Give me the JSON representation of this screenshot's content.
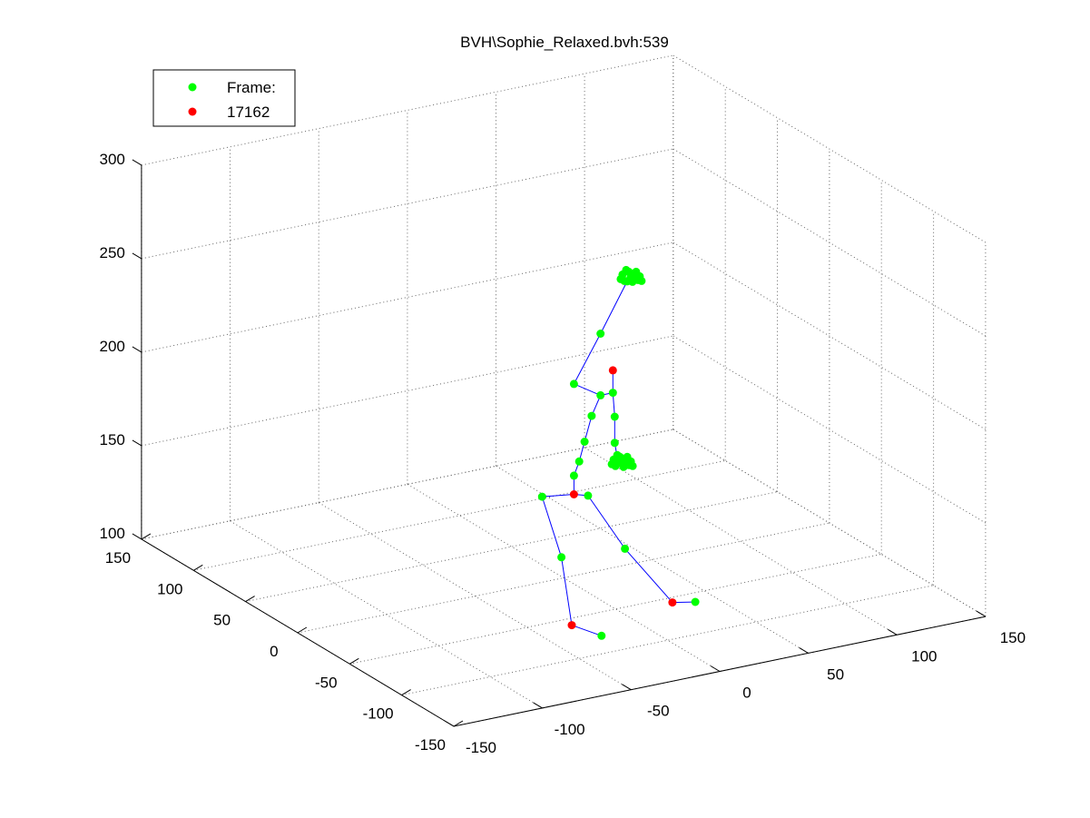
{
  "chart_data": {
    "type": "scatter",
    "title": "BVH\\Sophie_Relaxed.bvh:539",
    "legend": {
      "placement": "top-left",
      "entries": [
        {
          "label": "Frame:",
          "color": "#00ff00"
        },
        {
          "label": "17162",
          "color": "#ff0000"
        }
      ]
    },
    "grid": true,
    "projection": "3d",
    "x_axis": {
      "range": [
        -150,
        150
      ],
      "ticks": [
        "-150",
        "-100",
        "-50",
        "0",
        "50",
        "100",
        "150"
      ]
    },
    "y_axis": {
      "range": [
        -150,
        150
      ],
      "ticks": [
        "-150",
        "-100",
        "-50",
        "0",
        "50",
        "100",
        "150"
      ]
    },
    "z_axis": {
      "range": [
        100,
        300
      ],
      "ticks": [
        "100",
        "150",
        "200",
        "250",
        "300"
      ]
    },
    "colors": {
      "joint": "#00ff00",
      "highlight": "#ff0000",
      "bone": "#0000ff",
      "grid": "#666666"
    },
    "joints": [
      {
        "name": "hip",
        "x": 0,
        "y": -10,
        "z": 148,
        "highlight": true
      },
      {
        "name": "lhip",
        "x": -15,
        "y": -5,
        "z": 148,
        "highlight": false
      },
      {
        "name": "lknee",
        "x": -10,
        "y": -15,
        "z": 118,
        "highlight": false
      },
      {
        "name": "lankle",
        "x": -10,
        "y": -25,
        "z": 85,
        "highlight": true
      },
      {
        "name": "ltoe",
        "x": -5,
        "y": -45,
        "z": 85,
        "highlight": false
      },
      {
        "name": "rhip",
        "x": 5,
        "y": -15,
        "z": 148,
        "highlight": false
      },
      {
        "name": "rknee",
        "x": 20,
        "y": -25,
        "z": 120,
        "highlight": false
      },
      {
        "name": "rankle",
        "x": 35,
        "y": -45,
        "z": 95,
        "highlight": true
      },
      {
        "name": "rtoe",
        "x": 45,
        "y": -50,
        "z": 95,
        "highlight": false
      },
      {
        "name": "spine1",
        "x": 0,
        "y": -10,
        "z": 158,
        "highlight": false
      },
      {
        "name": "spine2",
        "x": 3,
        "y": -10,
        "z": 165,
        "highlight": false
      },
      {
        "name": "spine3",
        "x": 6,
        "y": -10,
        "z": 175,
        "highlight": false
      },
      {
        "name": "spine4",
        "x": 10,
        "y": -10,
        "z": 188,
        "highlight": false
      },
      {
        "name": "neck",
        "x": 15,
        "y": -10,
        "z": 198,
        "highlight": false
      },
      {
        "name": "lshoulder",
        "x": 0,
        "y": -10,
        "z": 207,
        "highlight": false
      },
      {
        "name": "lelbow",
        "x": 15,
        "y": -10,
        "z": 231,
        "highlight": false
      },
      {
        "name": "lwrist",
        "x": 30,
        "y": -10,
        "z": 256,
        "highlight": false
      },
      {
        "name": "rshoulder",
        "x": 22,
        "y": -10,
        "z": 198,
        "highlight": false
      },
      {
        "name": "rupper",
        "x": 22,
        "y": -10,
        "z": 210,
        "highlight": true
      },
      {
        "name": "relbow",
        "x": 23,
        "y": -10,
        "z": 185,
        "highlight": false
      },
      {
        "name": "rforearm",
        "x": 23,
        "y": -10,
        "z": 171,
        "highlight": false
      },
      {
        "name": "rwrist",
        "x": 25,
        "y": -10,
        "z": 160,
        "highlight": false
      }
    ],
    "bones": [
      [
        "hip",
        "lhip"
      ],
      [
        "lhip",
        "lknee"
      ],
      [
        "lknee",
        "lankle"
      ],
      [
        "lankle",
        "ltoe"
      ],
      [
        "hip",
        "rhip"
      ],
      [
        "rhip",
        "rknee"
      ],
      [
        "rknee",
        "rankle"
      ],
      [
        "rankle",
        "rtoe"
      ],
      [
        "hip",
        "spine1"
      ],
      [
        "spine1",
        "spine2"
      ],
      [
        "spine2",
        "spine3"
      ],
      [
        "spine3",
        "spine4"
      ],
      [
        "spine4",
        "neck"
      ],
      [
        "neck",
        "lshoulder"
      ],
      [
        "lshoulder",
        "lelbow"
      ],
      [
        "lelbow",
        "lwrist"
      ],
      [
        "neck",
        "rshoulder"
      ],
      [
        "rshoulder",
        "rupper"
      ],
      [
        "rshoulder",
        "relbow"
      ],
      [
        "relbow",
        "rforearm"
      ],
      [
        "rforearm",
        "rwrist"
      ]
    ],
    "hand_clusters": [
      {
        "name": "left-hand",
        "x": 31,
        "y": -10,
        "z": 258
      },
      {
        "name": "right-hand",
        "x": 26,
        "y": -10,
        "z": 160
      }
    ]
  }
}
